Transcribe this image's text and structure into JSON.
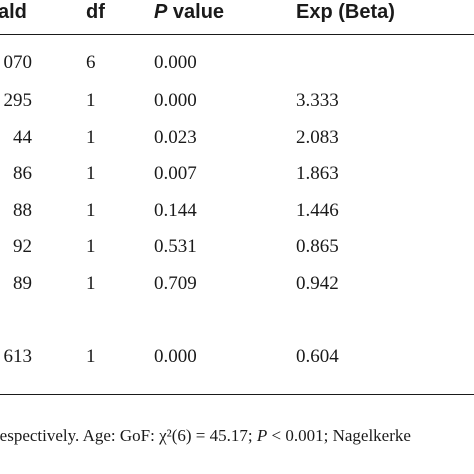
{
  "table": {
    "headers": {
      "wald": "ald",
      "df": "df",
      "p_italic": "P",
      "p_rest": " value",
      "exp": "Exp (Beta)"
    },
    "rows": [
      {
        "wald": "070",
        "df": "6",
        "p": "0.000",
        "exp": ""
      },
      {
        "wald": "295",
        "df": "1",
        "p": "0.000",
        "exp": "3.333"
      },
      {
        "wald": "44",
        "df": "1",
        "p": "0.023",
        "exp": "2.083"
      },
      {
        "wald": "86",
        "df": "1",
        "p": "0.007",
        "exp": "1.863"
      },
      {
        "wald": "88",
        "df": "1",
        "p": "0.144",
        "exp": "1.446"
      },
      {
        "wald": "92",
        "df": "1",
        "p": "0.531",
        "exp": "0.865"
      },
      {
        "wald": "89",
        "df": "1",
        "p": "0.709",
        "exp": "0.942"
      },
      {
        "wald": "613",
        "df": "1",
        "p": "0.000",
        "exp": "0.604"
      }
    ]
  },
  "footnote": {
    "part1": "respectively. Age: GoF: χ²(6) = 45.17; ",
    "p_italic": "P",
    "part2": " < 0.001; Nagelkerke"
  }
}
